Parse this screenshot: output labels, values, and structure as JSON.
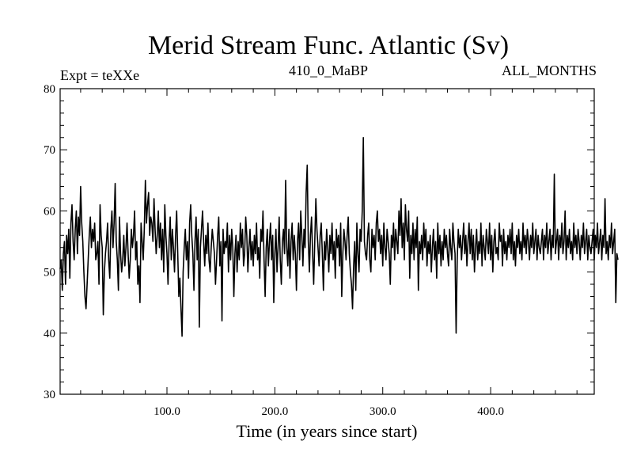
{
  "chart_data": {
    "type": "line",
    "title": "Merid Stream Func. Atlantic (Sv)",
    "subtitle_left": "Expt = teXXe",
    "subtitle_center": "410_0_MaBP",
    "subtitle_right": "ALL_MONTHS",
    "xlabel": "Time (in years since start)",
    "ylabel": "",
    "xlim": [
      1,
      496
    ],
    "ylim": [
      30,
      80
    ],
    "x_ticks": [
      {
        "value": 100,
        "label": "100.0"
      },
      {
        "value": 200,
        "label": "200.0"
      },
      {
        "value": 300,
        "label": "300.0"
      },
      {
        "value": 400,
        "label": "400.0"
      }
    ],
    "y_ticks": [
      {
        "value": 30,
        "label": "30"
      },
      {
        "value": 40,
        "label": "40"
      },
      {
        "value": 50,
        "label": "50"
      },
      {
        "value": 60,
        "label": "60"
      },
      {
        "value": 70,
        "label": "70"
      },
      {
        "value": 80,
        "label": "80"
      }
    ],
    "grid": false,
    "line_color": "#000000",
    "series": [
      {
        "x_start": 1,
        "x_step": 1,
        "values": [
          50.5,
          52,
          47,
          53,
          55,
          48,
          56,
          53,
          57,
          49,
          58,
          61,
          55,
          52,
          57,
          60,
          53,
          59,
          56,
          64,
          58,
          55,
          50,
          46,
          44,
          48,
          52,
          56,
          59,
          54,
          57,
          55,
          58,
          52,
          53,
          55,
          48,
          61,
          56,
          54,
          43,
          50,
          53,
          55,
          58,
          52,
          49,
          57,
          60,
          54,
          58,
          64.5,
          55,
          52,
          47,
          59,
          53,
          50,
          52,
          56,
          51,
          54,
          58,
          53,
          49,
          52,
          57,
          54,
          56,
          60,
          52,
          55,
          48,
          51,
          45,
          58,
          55,
          52,
          57,
          65,
          58,
          61,
          63,
          56,
          59,
          58,
          55,
          62,
          57,
          53,
          56,
          60,
          54,
          58,
          52,
          57,
          50,
          61,
          56,
          53,
          48,
          55,
          59,
          52,
          57,
          54,
          50,
          56,
          60,
          53,
          46,
          49,
          44,
          39.5,
          50,
          54,
          57,
          52,
          55,
          49,
          58,
          61,
          56,
          53,
          47,
          55,
          59,
          52,
          57,
          41,
          54,
          57,
          60,
          55,
          51,
          56,
          53,
          58,
          52,
          50,
          54,
          57,
          55,
          53,
          48,
          52,
          56,
          59,
          51,
          55,
          42,
          57,
          53,
          55,
          54,
          58,
          50,
          56,
          52,
          57,
          54,
          46,
          53,
          56,
          50,
          55,
          52,
          58,
          54,
          57,
          51,
          53,
          59,
          56,
          50,
          54,
          57,
          52,
          55,
          51,
          56,
          53,
          58,
          52,
          54,
          49,
          57,
          55,
          60,
          52,
          46,
          54,
          57,
          51,
          55,
          58,
          52,
          56,
          45,
          53,
          57,
          50,
          54,
          59,
          52,
          48,
          55,
          57,
          53,
          65,
          54,
          51,
          57,
          49,
          55,
          58,
          52,
          56,
          53,
          47,
          55,
          58,
          52,
          60,
          56,
          51,
          57,
          54,
          63,
          67.5,
          55,
          50,
          56,
          59,
          53,
          48,
          55,
          62,
          57,
          54,
          51,
          56,
          58,
          53,
          47,
          55,
          52,
          57,
          54,
          50,
          56,
          53,
          58,
          52,
          55,
          49,
          57,
          54,
          56,
          51,
          58,
          46,
          53,
          57,
          55,
          52,
          56,
          59,
          53,
          50,
          48,
          44,
          51,
          55,
          47,
          58,
          53,
          50,
          57,
          55,
          60,
          72,
          55,
          53,
          52,
          56,
          58,
          52,
          50,
          57,
          54,
          56,
          52,
          58,
          60,
          55,
          57,
          53,
          56,
          51,
          58,
          54,
          52,
          57,
          55,
          53,
          48,
          56,
          54,
          58,
          52,
          57,
          55,
          53,
          60,
          56,
          62,
          54,
          58,
          52,
          61,
          57,
          55,
          60,
          49,
          56,
          53,
          58,
          52,
          57,
          54,
          59,
          47,
          55,
          53,
          56,
          52,
          58,
          54,
          57,
          51,
          55,
          53,
          56,
          50,
          54,
          57,
          52,
          55,
          49,
          58,
          53,
          56,
          51,
          55,
          52,
          57,
          54,
          56,
          53,
          51,
          57,
          54,
          52,
          58,
          55,
          53,
          40,
          52,
          57,
          54,
          56,
          52,
          55,
          58,
          53,
          56,
          51,
          55,
          58,
          53,
          57,
          52,
          56,
          50,
          54,
          57,
          52,
          55,
          53,
          58,
          51,
          56,
          54,
          52,
          57,
          55,
          53,
          58,
          52,
          56,
          50,
          55,
          57,
          53,
          54,
          52,
          58,
          55,
          56,
          51,
          57,
          53,
          55,
          52,
          56,
          54,
          57,
          53,
          58,
          52,
          55,
          51,
          56,
          54,
          57,
          53,
          55,
          52,
          58,
          54,
          56,
          53,
          57,
          55,
          52,
          56,
          54,
          58,
          53,
          55,
          57,
          52,
          56,
          54,
          53,
          55,
          57,
          52,
          56,
          54,
          58,
          53,
          55,
          57,
          52,
          56,
          54,
          66,
          53,
          55,
          57,
          52,
          56,
          54,
          58,
          53,
          55,
          60,
          52,
          56,
          54,
          57,
          53,
          55,
          52,
          58,
          54,
          56,
          53,
          57,
          55,
          52,
          56,
          54,
          58,
          53,
          55,
          57,
          52,
          56,
          54,
          53,
          55,
          57,
          52,
          56,
          54,
          58,
          53,
          55,
          57,
          52,
          56,
          54,
          62,
          53,
          55,
          52,
          56,
          54,
          58,
          53,
          55,
          57,
          45,
          53,
          52
        ]
      }
    ]
  }
}
